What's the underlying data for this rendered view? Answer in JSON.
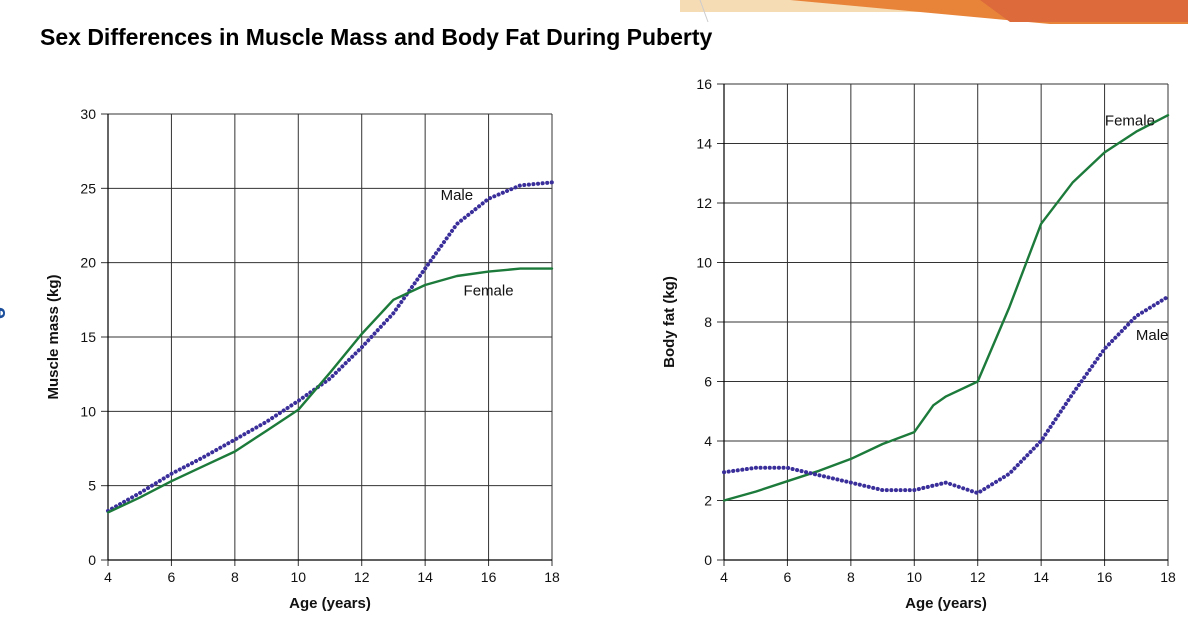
{
  "title": "Sex Differences in Muscle Mass and Body Fat During Puberty",
  "side_letter": "e",
  "colors": {
    "female": "#1c7a3a",
    "male": "#3a2f9a",
    "grid": "#333333",
    "accent_orange": "#e8843a",
    "accent_light": "#f2c88c"
  },
  "chart_data": [
    {
      "type": "line",
      "xlabel": "Age (years)",
      "ylabel": "Muscle mass (kg)",
      "xlim": [
        4,
        18
      ],
      "ylim": [
        0,
        30
      ],
      "xticks": [
        "4",
        "6",
        "8",
        "10",
        "12",
        "14",
        "16",
        "18"
      ],
      "yticks": [
        "0",
        "5",
        "10",
        "15",
        "20",
        "25",
        "30"
      ],
      "grid": true,
      "series": [
        {
          "name": "Male",
          "style": "dotted",
          "points": [
            [
              4,
              3.3
            ],
            [
              5,
              4.5
            ],
            [
              6,
              5.8
            ],
            [
              7,
              6.9
            ],
            [
              8,
              8.1
            ],
            [
              9,
              9.3
            ],
            [
              10,
              10.7
            ],
            [
              11,
              12.2
            ],
            [
              12,
              14.3
            ],
            [
              13,
              16.6
            ],
            [
              14,
              19.6
            ],
            [
              15,
              22.6
            ],
            [
              16,
              24.3
            ],
            [
              17,
              25.2
            ],
            [
              18,
              25.4
            ]
          ]
        },
        {
          "name": "Female",
          "style": "solid",
          "points": [
            [
              4,
              3.2
            ],
            [
              5,
              4.2
            ],
            [
              6,
              5.3
            ],
            [
              7,
              6.3
            ],
            [
              8,
              7.3
            ],
            [
              9,
              8.7
            ],
            [
              10,
              10.1
            ],
            [
              11,
              12.6
            ],
            [
              12,
              15.2
            ],
            [
              13,
              17.5
            ],
            [
              14,
              18.5
            ],
            [
              15,
              19.1
            ],
            [
              16,
              19.4
            ],
            [
              17,
              19.6
            ],
            [
              18,
              19.6
            ]
          ]
        }
      ],
      "annotations": [
        {
          "text": "Male",
          "x": 15.0,
          "y": 24.2
        },
        {
          "text": "Female",
          "x": 16.0,
          "y": 17.8
        }
      ]
    },
    {
      "type": "line",
      "xlabel": "Age (years)",
      "ylabel": "Body fat (kg)",
      "xlim": [
        4,
        18
      ],
      "ylim": [
        0,
        16
      ],
      "xticks": [
        "4",
        "6",
        "8",
        "10",
        "12",
        "14",
        "16",
        "18"
      ],
      "yticks": [
        "0",
        "2",
        "4",
        "6",
        "8",
        "10",
        "12",
        "14",
        "16"
      ],
      "grid": true,
      "series": [
        {
          "name": "Female",
          "style": "solid",
          "points": [
            [
              4,
              2.0
            ],
            [
              5,
              2.3
            ],
            [
              6,
              2.65
            ],
            [
              7,
              3.0
            ],
            [
              8,
              3.4
            ],
            [
              9,
              3.9
            ],
            [
              10,
              4.3
            ],
            [
              10.6,
              5.2
            ],
            [
              11,
              5.5
            ],
            [
              12,
              6.0
            ],
            [
              13,
              8.5
            ],
            [
              14,
              11.3
            ],
            [
              15,
              12.7
            ],
            [
              16,
              13.7
            ],
            [
              17,
              14.4
            ],
            [
              18,
              14.95
            ]
          ]
        },
        {
          "name": "Male",
          "style": "dotted",
          "points": [
            [
              4,
              2.95
            ],
            [
              5,
              3.1
            ],
            [
              6,
              3.1
            ],
            [
              7,
              2.85
            ],
            [
              8,
              2.6
            ],
            [
              9,
              2.35
            ],
            [
              10,
              2.35
            ],
            [
              11,
              2.6
            ],
            [
              12,
              2.25
            ],
            [
              13,
              2.9
            ],
            [
              14,
              4.0
            ],
            [
              15,
              5.6
            ],
            [
              16,
              7.1
            ],
            [
              17,
              8.2
            ],
            [
              18,
              8.85
            ]
          ]
        }
      ],
      "annotations": [
        {
          "text": "Female",
          "x": 16.8,
          "y": 14.6
        },
        {
          "text": "Male",
          "x": 17.5,
          "y": 7.4
        }
      ]
    }
  ]
}
